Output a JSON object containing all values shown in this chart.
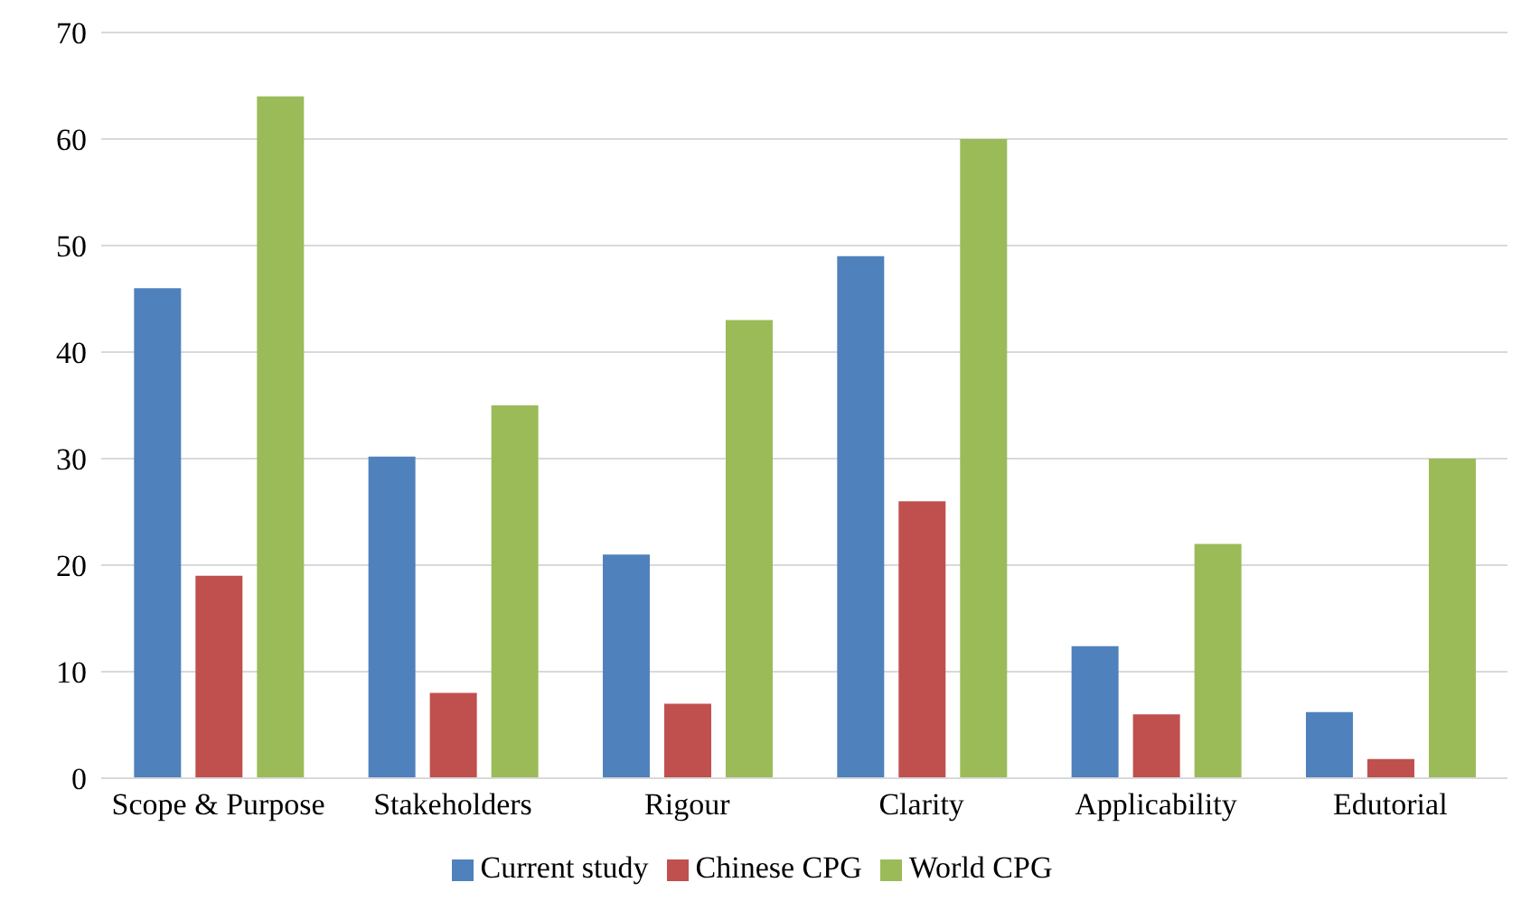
{
  "chart_data": {
    "type": "bar",
    "categories": [
      "Scope & Purpose",
      "Stakeholders",
      "Rigour",
      "Clarity",
      "Applicability",
      "Edutorial"
    ],
    "series": [
      {
        "name": "Current study",
        "color": "#4f81bd",
        "values": [
          46,
          30.2,
          21,
          49,
          12.4,
          6.2
        ]
      },
      {
        "name": "Chinese CPG",
        "color": "#c0504d",
        "values": [
          19,
          8,
          7,
          26,
          6,
          1.8
        ]
      },
      {
        "name": "World CPG",
        "color": "#9bbb59",
        "values": [
          64,
          35,
          43,
          60,
          22,
          30
        ]
      }
    ],
    "ylim": [
      0,
      70
    ],
    "yticks": [
      0,
      10,
      20,
      30,
      40,
      50,
      60,
      70
    ],
    "grid": "y",
    "legend": "bottom"
  }
}
